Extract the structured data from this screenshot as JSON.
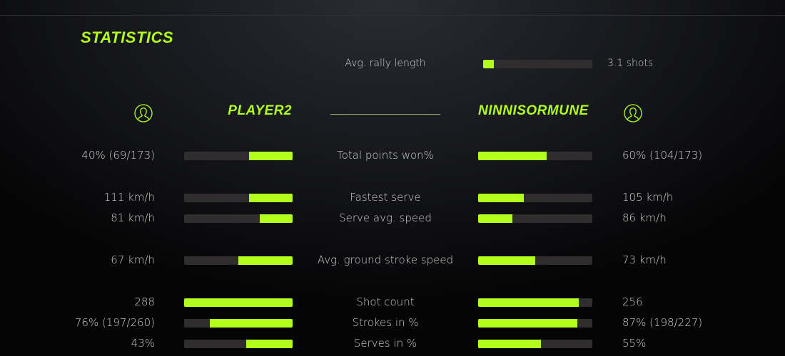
{
  "colors": {
    "accent": "#b2ff1e",
    "track": "#2f2d2d"
  },
  "title": "STATISTICS",
  "rally": {
    "label": "Avg. rally length",
    "value": "3.1 shots",
    "fill": 0.1
  },
  "players": {
    "left": {
      "name": "PLAYER2",
      "icon": "user-circle-icon"
    },
    "right": {
      "name": "NINNISORMUNE",
      "icon": "user-circle-icon"
    }
  },
  "stats": [
    {
      "label": "Total points won%",
      "left": "40% (69/173)",
      "right": "60% (104/173)",
      "left_fill": 0.4,
      "right_fill": 0.6
    },
    {
      "label": "Fastest serve",
      "left": "111 km/h",
      "right": "105 km/h",
      "left_fill": 0.4,
      "right_fill": 0.4
    },
    {
      "label": "Serve avg. speed",
      "left": "81 km/h",
      "right": "86 km/h",
      "left_fill": 0.3,
      "right_fill": 0.3
    },
    {
      "label": "Avg. ground stroke speed",
      "left": "67 km/h",
      "right": "73 km/h",
      "left_fill": 0.5,
      "right_fill": 0.5
    },
    {
      "label": "Shot count",
      "left": "288",
      "right": "256",
      "left_fill": 1.0,
      "right_fill": 0.88
    },
    {
      "label": "Strokes in %",
      "left": "76% (197/260)",
      "right": "87% (198/227)",
      "left_fill": 0.76,
      "right_fill": 0.87
    },
    {
      "label": "Serves in %",
      "left": "43%",
      "right": "55%",
      "left_fill": 0.43,
      "right_fill": 0.55
    }
  ]
}
